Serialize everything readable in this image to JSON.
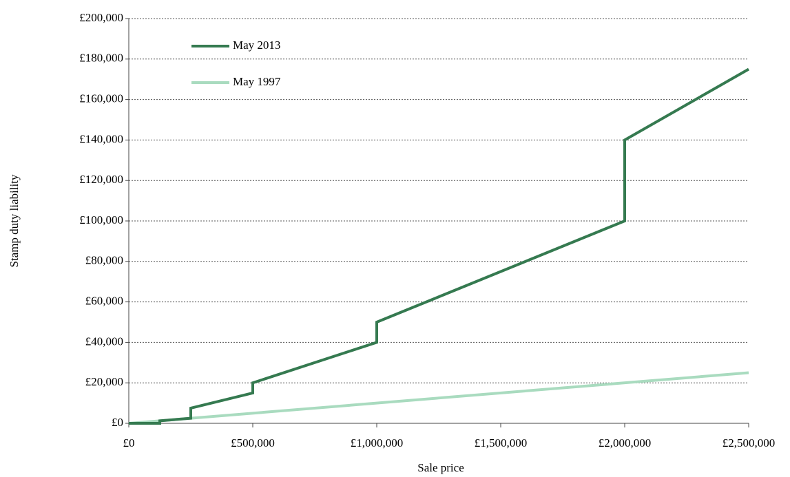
{
  "chart_data": {
    "type": "line",
    "x_label": "Sale price",
    "y_label": "Stamp duty liability",
    "xlim": [
      0,
      2500000
    ],
    "ylim": [
      0,
      200000
    ],
    "xticks": [
      {
        "value": 0,
        "label": "£0"
      },
      {
        "value": 500000,
        "label": "£500,000"
      },
      {
        "value": 1000000,
        "label": "£1,000,000"
      },
      {
        "value": 1500000,
        "label": "£1,500,000"
      },
      {
        "value": 2000000,
        "label": "£2,000,000"
      },
      {
        "value": 2500000,
        "label": "£2,500,000"
      }
    ],
    "yticks": [
      {
        "value": 0,
        "label": "£0"
      },
      {
        "value": 20000,
        "label": "£20,000"
      },
      {
        "value": 40000,
        "label": "£40,000"
      },
      {
        "value": 60000,
        "label": "£60,000"
      },
      {
        "value": 80000,
        "label": "£80,000"
      },
      {
        "value": 100000,
        "label": "£100,000"
      },
      {
        "value": 120000,
        "label": "£120,000"
      },
      {
        "value": 140000,
        "label": "£140,000"
      },
      {
        "value": 160000,
        "label": "£160,000"
      },
      {
        "value": 180000,
        "label": "£180,000"
      },
      {
        "value": 200000,
        "label": "£200,000"
      }
    ],
    "grid": true,
    "legend": "upper left",
    "series": [
      {
        "name": "May 2013",
        "color": "#357a50",
        "x": [
          0,
          125000,
          125000,
          250000,
          250000,
          500000,
          500000,
          1000000,
          1000000,
          2000000,
          2000000,
          2500000
        ],
        "values": [
          0,
          0,
          1250,
          2500,
          7500,
          15000,
          20000,
          40000,
          50000,
          100000,
          140000,
          175000
        ]
      },
      {
        "name": "May 1997",
        "color": "#a9dbbf",
        "x": [
          0,
          2500000
        ],
        "values": [
          0,
          25000
        ]
      }
    ]
  }
}
